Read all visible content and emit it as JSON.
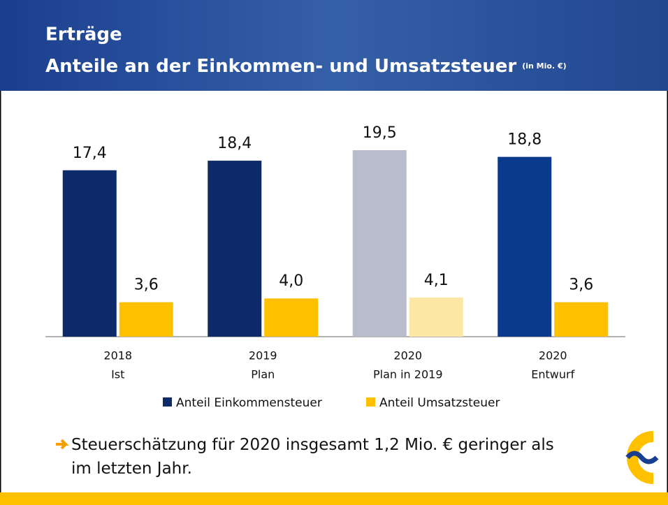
{
  "chart_data": {
    "type": "bar",
    "title": "Erträge",
    "subtitle": "Anteile an der Einkommen- und Umsatzsteuer",
    "unit": "(in Mio. €)",
    "categories": [
      [
        "2018",
        "Ist"
      ],
      [
        "2019",
        "Plan"
      ],
      [
        "2020",
        "Plan in 2019"
      ],
      [
        "2020",
        "Entwurf"
      ]
    ],
    "series": [
      {
        "name": "Anteil Einkommensteuer",
        "color": "#0d2a6b",
        "colors": [
          "#0d2a6b",
          "#0d2a6b",
          "#b9bccb",
          "#0a3a8c"
        ],
        "values": [
          17.4,
          18.4,
          19.5,
          18.8
        ],
        "value_labels": [
          "17,4",
          "18,4",
          "19,5",
          "18,8"
        ]
      },
      {
        "name": "Anteil Umsatzsteuer",
        "color": "#ffc000",
        "colors": [
          "#ffc000",
          "#ffc000",
          "#fde7a6",
          "#ffc000"
        ],
        "values": [
          3.6,
          4.0,
          4.1,
          3.6
        ],
        "value_labels": [
          "3,6",
          "4,0",
          "4,1",
          "3,6"
        ]
      }
    ],
    "note": "Steuerschätzung für 2020 insgesamt 1,2 Mio. € geringer als im letzten Jahr."
  }
}
